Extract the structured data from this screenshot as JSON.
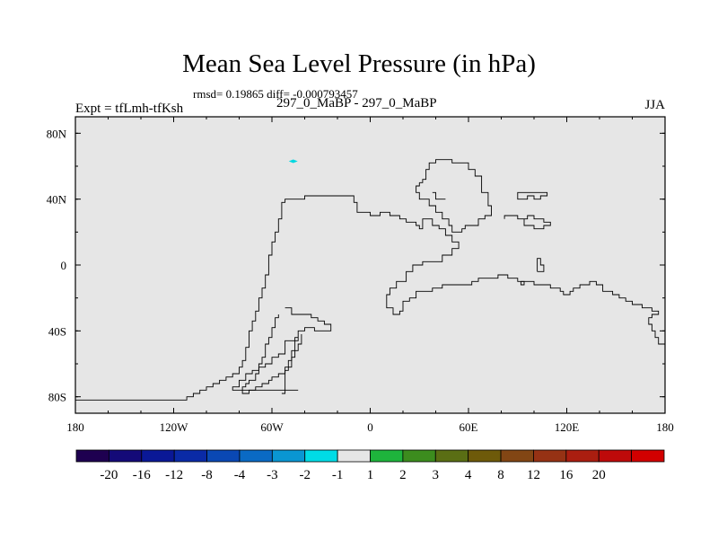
{
  "title": "Mean Sea Level Pressure (in hPa)",
  "stats_line": "rmsd= 0.19865 diff= -0.000793457",
  "expt_label": "Expt = tfLmh-tfKsh",
  "subtitle": "297_0_MaBP - 297_0_MaBP",
  "season": "JJA",
  "chart_data": {
    "type": "heatmap",
    "title": "Mean Sea Level Pressure (in hPa)",
    "field_value_everywhere": "-1 to 1 (near zero)",
    "x_axis": {
      "range": [
        -180,
        180
      ],
      "ticks": [
        -180,
        -120,
        -60,
        0,
        60,
        120,
        180
      ],
      "tick_labels": [
        "180",
        "120W",
        "60W",
        "0",
        "60E",
        "120E",
        "180"
      ]
    },
    "y_axis": {
      "range": [
        -90,
        90
      ],
      "ticks": [
        80,
        40,
        0,
        -40,
        -80
      ],
      "tick_labels": [
        "80N",
        "40N",
        "0",
        "40S",
        "80S"
      ]
    },
    "anomaly_spot": {
      "lon": -47,
      "lat": 63,
      "color": "#00d8e0",
      "class": "-2 to -1"
    },
    "colorbar": {
      "colors": [
        "#1e0050",
        "#140a78",
        "#0a1896",
        "#0a2aa6",
        "#0a48b4",
        "#0a6ac4",
        "#0a96d2",
        "#00dce6",
        "#e6e6e6",
        "#1eb43c",
        "#3c8c1e",
        "#5a6e14",
        "#6e5a0a",
        "#824614",
        "#963214",
        "#aa1e10",
        "#be0a0a",
        "#d20000"
      ],
      "labels": [
        "-20",
        "-16",
        "-12",
        "-8",
        "-4",
        "-3",
        "-2",
        "-1",
        "1",
        "2",
        "3",
        "4",
        "8",
        "12",
        "16",
        "20"
      ]
    },
    "coastlines": [
      [
        [
          -180,
          -82
        ],
        [
          -112,
          -82
        ],
        [
          -112,
          -80
        ],
        [
          -108,
          -80
        ],
        [
          -108,
          -78
        ],
        [
          -104,
          -78
        ],
        [
          -104,
          -76
        ],
        [
          -100,
          -76
        ],
        [
          -100,
          -74
        ],
        [
          -96,
          -74
        ],
        [
          -96,
          -72
        ],
        [
          -92,
          -72
        ],
        [
          -92,
          -70
        ],
        [
          -88,
          -70
        ],
        [
          -88,
          -68
        ],
        [
          -84,
          -68
        ],
        [
          -84,
          -66
        ],
        [
          -80,
          -66
        ],
        [
          -80,
          -62
        ],
        [
          -78,
          -62
        ],
        [
          -78,
          -58
        ],
        [
          -76,
          -58
        ],
        [
          -76,
          -50
        ],
        [
          -74,
          -50
        ],
        [
          -74,
          -40
        ],
        [
          -72,
          -40
        ],
        [
          -72,
          -34
        ],
        [
          -70,
          -34
        ],
        [
          -70,
          -28
        ],
        [
          -68,
          -28
        ],
        [
          -68,
          -20
        ],
        [
          -66,
          -20
        ],
        [
          -66,
          -14
        ],
        [
          -64,
          -14
        ],
        [
          -64,
          -6
        ],
        [
          -62,
          -6
        ],
        [
          -62,
          6
        ],
        [
          -60,
          6
        ],
        [
          -60,
          14
        ],
        [
          -58,
          14
        ],
        [
          -58,
          20
        ],
        [
          -56,
          20
        ],
        [
          -56,
          28
        ],
        [
          -54,
          28
        ],
        [
          -54,
          38
        ],
        [
          -52,
          38
        ],
        [
          -52,
          40
        ],
        [
          -40,
          40
        ],
        [
          -40,
          42
        ],
        [
          -10,
          42
        ],
        [
          -10,
          38
        ],
        [
          -8,
          38
        ],
        [
          -8,
          32
        ],
        [
          0,
          32
        ],
        [
          0,
          30
        ],
        [
          6,
          30
        ],
        [
          6,
          32
        ],
        [
          12,
          32
        ],
        [
          12,
          30
        ],
        [
          18,
          30
        ],
        [
          18,
          28
        ],
        [
          22,
          28
        ],
        [
          22,
          26
        ],
        [
          28,
          26
        ],
        [
          28,
          24
        ],
        [
          30,
          24
        ],
        [
          30,
          22
        ],
        [
          32,
          22
        ],
        [
          32,
          28
        ],
        [
          38,
          28
        ],
        [
          38,
          24
        ],
        [
          42,
          24
        ],
        [
          42,
          22
        ],
        [
          46,
          22
        ],
        [
          46,
          18
        ],
        [
          50,
          18
        ],
        [
          50,
          14
        ],
        [
          54,
          14
        ],
        [
          54,
          10
        ],
        [
          50,
          10
        ],
        [
          50,
          6
        ],
        [
          44,
          6
        ],
        [
          44,
          2
        ],
        [
          32,
          2
        ],
        [
          32,
          0
        ],
        [
          26,
          0
        ],
        [
          26,
          -4
        ],
        [
          22,
          -4
        ],
        [
          22,
          -10
        ],
        [
          16,
          -10
        ],
        [
          16,
          -14
        ],
        [
          12,
          -14
        ],
        [
          12,
          -18
        ],
        [
          10,
          -18
        ],
        [
          10,
          -26
        ],
        [
          14,
          -26
        ],
        [
          14,
          -30
        ],
        [
          18,
          -30
        ],
        [
          18,
          -28
        ],
        [
          20,
          -28
        ],
        [
          20,
          -22
        ],
        [
          24,
          -22
        ],
        [
          24,
          -20
        ],
        [
          28,
          -20
        ],
        [
          28,
          -16
        ],
        [
          38,
          -16
        ],
        [
          38,
          -14
        ],
        [
          44,
          -14
        ],
        [
          44,
          -12
        ],
        [
          62,
          -12
        ],
        [
          62,
          -10
        ],
        [
          66,
          -10
        ],
        [
          66,
          -8
        ],
        [
          78,
          -8
        ],
        [
          78,
          -6
        ],
        [
          84,
          -6
        ],
        [
          84,
          -8
        ],
        [
          90,
          -8
        ],
        [
          90,
          -10
        ],
        [
          100,
          -10
        ],
        [
          100,
          -12
        ],
        [
          110,
          -12
        ],
        [
          110,
          -14
        ],
        [
          116,
          -14
        ],
        [
          116,
          -16
        ],
        [
          118,
          -16
        ],
        [
          118,
          -18
        ],
        [
          122,
          -18
        ],
        [
          122,
          -16
        ],
        [
          124,
          -16
        ],
        [
          124,
          -14
        ],
        [
          128,
          -14
        ],
        [
          128,
          -12
        ],
        [
          134,
          -12
        ],
        [
          134,
          -10
        ],
        [
          138,
          -10
        ],
        [
          138,
          -12
        ],
        [
          142,
          -12
        ],
        [
          142,
          -16
        ],
        [
          148,
          -16
        ],
        [
          148,
          -18
        ],
        [
          152,
          -18
        ],
        [
          152,
          -20
        ],
        [
          156,
          -20
        ],
        [
          156,
          -22
        ],
        [
          160,
          -22
        ],
        [
          160,
          -24
        ],
        [
          166,
          -24
        ],
        [
          166,
          -26
        ],
        [
          172,
          -26
        ],
        [
          172,
          -28
        ],
        [
          176,
          -28
        ],
        [
          176,
          -30
        ],
        [
          172,
          -30
        ],
        [
          172,
          -32
        ],
        [
          170,
          -32
        ],
        [
          170,
          -36
        ],
        [
          172,
          -36
        ],
        [
          172,
          -40
        ],
        [
          174,
          -40
        ],
        [
          174,
          -44
        ],
        [
          176,
          -44
        ],
        [
          176,
          -48
        ],
        [
          180,
          -48
        ]
      ],
      [
        [
          -52,
          -26
        ],
        [
          -48,
          -26
        ],
        [
          -48,
          -30
        ],
        [
          -36,
          -30
        ],
        [
          -36,
          -32
        ],
        [
          -32,
          -32
        ],
        [
          -32,
          -34
        ],
        [
          -28,
          -34
        ],
        [
          -28,
          -36
        ],
        [
          -24,
          -36
        ],
        [
          -24,
          -40
        ],
        [
          -34,
          -40
        ],
        [
          -34,
          -38
        ],
        [
          -40,
          -38
        ],
        [
          -40,
          -40
        ],
        [
          -44,
          -40
        ],
        [
          -44,
          -46
        ],
        [
          -46,
          -46
        ],
        [
          -46,
          -52
        ],
        [
          -48,
          -52
        ],
        [
          -48,
          -58
        ],
        [
          -50,
          -58
        ],
        [
          -50,
          -64
        ],
        [
          -52,
          -64
        ],
        [
          -52,
          -78
        ],
        [
          -54,
          -78
        ]
      ],
      [
        [
          -56,
          -30
        ],
        [
          -56,
          -32
        ],
        [
          -58,
          -32
        ],
        [
          -58,
          -38
        ],
        [
          -60,
          -38
        ],
        [
          -60,
          -44
        ],
        [
          -62,
          -44
        ],
        [
          -62,
          -48
        ],
        [
          -64,
          -48
        ],
        [
          -64,
          -56
        ],
        [
          -66,
          -56
        ],
        [
          -66,
          -60
        ],
        [
          -68,
          -60
        ],
        [
          -68,
          -66
        ],
        [
          -70,
          -66
        ],
        [
          -70,
          -70
        ],
        [
          -74,
          -70
        ],
        [
          -74,
          -72
        ],
        [
          -76,
          -72
        ],
        [
          -76,
          -74
        ],
        [
          -78,
          -74
        ],
        [
          -78,
          -78
        ],
        [
          -74,
          -78
        ],
        [
          -74,
          -76
        ],
        [
          -70,
          -76
        ],
        [
          -70,
          -74
        ],
        [
          -66,
          -74
        ],
        [
          -66,
          -72
        ],
        [
          -62,
          -72
        ],
        [
          -62,
          -70
        ],
        [
          -60,
          -70
        ],
        [
          -60,
          -68
        ],
        [
          -56,
          -68
        ],
        [
          -56,
          -66
        ],
        [
          -52,
          -66
        ],
        [
          -52,
          -62
        ],
        [
          -48,
          -62
        ],
        [
          -48,
          -56
        ],
        [
          -46,
          -56
        ],
        [
          -46,
          -52
        ],
        [
          -44,
          -52
        ],
        [
          -44,
          -48
        ],
        [
          -42,
          -48
        ],
        [
          -42,
          -42
        ]
      ],
      [
        [
          -44,
          -44
        ],
        [
          -46,
          -44
        ],
        [
          -46,
          -46
        ],
        [
          -52,
          -46
        ],
        [
          -52,
          -54
        ],
        [
          -56,
          -54
        ],
        [
          -56,
          -56
        ],
        [
          -60,
          -56
        ],
        [
          -60,
          -60
        ],
        [
          -64,
          -60
        ],
        [
          -64,
          -62
        ],
        [
          -68,
          -62
        ],
        [
          -68,
          -64
        ],
        [
          -72,
          -64
        ],
        [
          -72,
          -66
        ],
        [
          -76,
          -66
        ],
        [
          -76,
          -70
        ],
        [
          -80,
          -70
        ],
        [
          -80,
          -74
        ],
        [
          -84,
          -74
        ],
        [
          -84,
          -76
        ],
        [
          -44,
          -76
        ]
      ],
      [
        [
          30,
          50
        ],
        [
          32,
          50
        ],
        [
          32,
          52
        ],
        [
          34,
          52
        ],
        [
          34,
          58
        ],
        [
          36,
          58
        ],
        [
          36,
          62
        ],
        [
          40,
          62
        ],
        [
          40,
          64
        ],
        [
          50,
          64
        ],
        [
          50,
          62
        ],
        [
          60,
          62
        ],
        [
          60,
          58
        ],
        [
          64,
          58
        ],
        [
          64,
          54
        ],
        [
          68,
          54
        ],
        [
          68,
          44
        ],
        [
          72,
          44
        ],
        [
          72,
          36
        ],
        [
          74,
          36
        ],
        [
          74,
          30
        ],
        [
          70,
          30
        ],
        [
          70,
          28
        ],
        [
          66,
          28
        ],
        [
          66,
          24
        ],
        [
          58,
          24
        ],
        [
          58,
          22
        ],
        [
          56,
          22
        ],
        [
          56,
          20
        ],
        [
          50,
          20
        ],
        [
          50,
          24
        ],
        [
          48,
          24
        ],
        [
          48,
          28
        ],
        [
          44,
          28
        ],
        [
          44,
          32
        ],
        [
          40,
          32
        ],
        [
          40,
          36
        ],
        [
          36,
          36
        ],
        [
          36,
          40
        ],
        [
          30,
          40
        ],
        [
          30,
          44
        ],
        [
          28,
          44
        ],
        [
          28,
          48
        ],
        [
          30,
          48
        ],
        [
          30,
          50
        ]
      ],
      [
        [
          38,
          44
        ],
        [
          40,
          44
        ],
        [
          40,
          40
        ],
        [
          46,
          40
        ]
      ],
      [
        [
          90,
          42
        ],
        [
          90,
          44
        ],
        [
          108,
          44
        ],
        [
          108,
          42
        ],
        [
          104,
          42
        ],
        [
          104,
          40
        ],
        [
          100,
          40
        ],
        [
          100,
          42
        ],
        [
          96,
          42
        ],
        [
          96,
          40
        ],
        [
          90,
          40
        ],
        [
          90,
          42
        ]
      ],
      [
        [
          82,
          28
        ],
        [
          82,
          30
        ],
        [
          90,
          30
        ],
        [
          90,
          28
        ],
        [
          94,
          28
        ],
        [
          94,
          24
        ],
        [
          100,
          24
        ],
        [
          100,
          22
        ],
        [
          106,
          22
        ],
        [
          106,
          24
        ],
        [
          110,
          24
        ],
        [
          110,
          26
        ],
        [
          106,
          26
        ],
        [
          106,
          28
        ],
        [
          100,
          28
        ],
        [
          100,
          30
        ],
        [
          96,
          30
        ],
        [
          96,
          28
        ],
        [
          90,
          28
        ]
      ],
      [
        [
          102,
          -4
        ],
        [
          106,
          -4
        ],
        [
          106,
          0
        ],
        [
          104,
          0
        ],
        [
          104,
          4
        ],
        [
          102,
          4
        ],
        [
          102,
          -4
        ]
      ],
      [
        [
          92,
          -10
        ],
        [
          94,
          -10
        ],
        [
          94,
          -12
        ],
        [
          92,
          -12
        ],
        [
          92,
          -10
        ]
      ]
    ]
  }
}
